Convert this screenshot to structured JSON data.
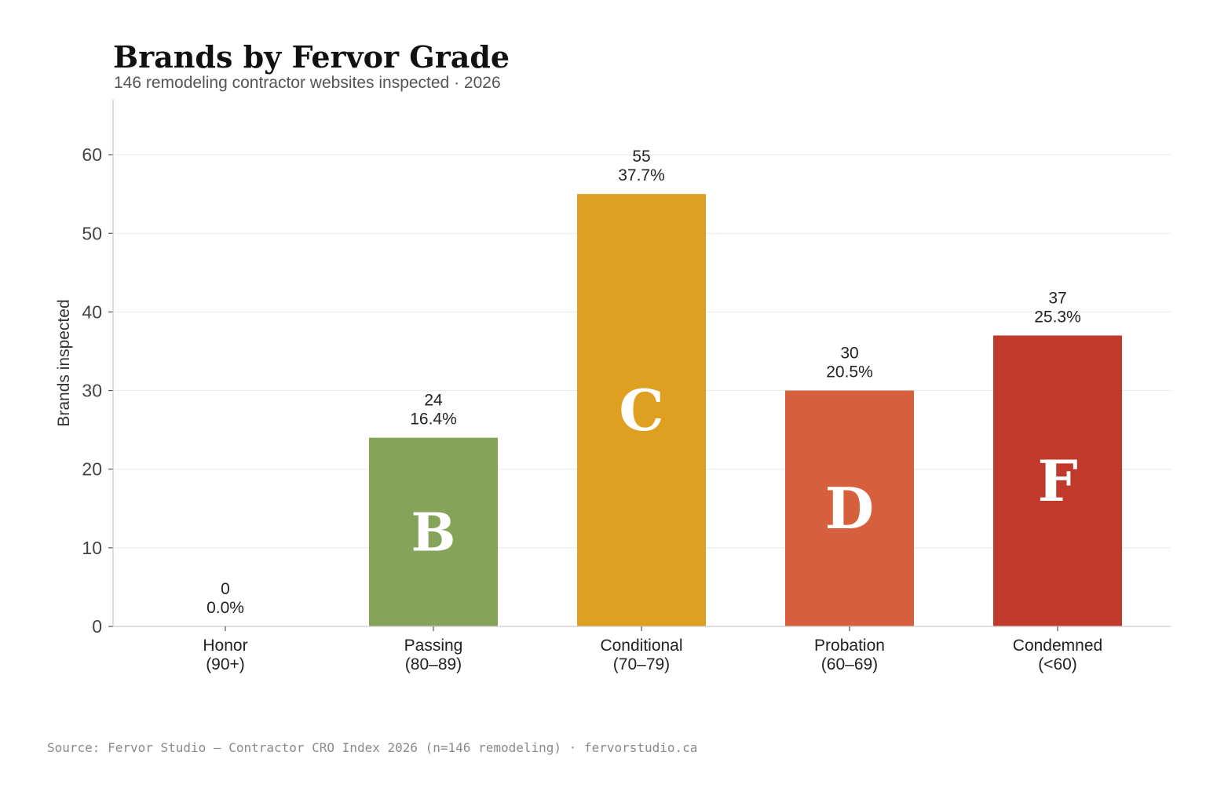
{
  "chart_data": {
    "type": "bar",
    "title": "Brands by Fervor Grade",
    "subtitle": "146 remodeling contractor websites inspected · 2026",
    "xlabel": "",
    "ylabel": "Brands inspected",
    "ylim": [
      0,
      67
    ],
    "yticks": [
      "0",
      "10",
      "20",
      "30",
      "40",
      "50",
      "60"
    ],
    "grid": "horizontal",
    "categories": [
      {
        "name": "Honor",
        "range": "(90+)"
      },
      {
        "name": "Passing",
        "range": "(80–89)"
      },
      {
        "name": "Conditional",
        "range": "(70–79)"
      },
      {
        "name": "Probation",
        "range": "(60–69)"
      },
      {
        "name": "Condemned",
        "range": "(<60)"
      }
    ],
    "values": [
      0,
      24,
      55,
      30,
      37
    ],
    "percent_labels": [
      "0.0%",
      "16.4%",
      "37.7%",
      "20.5%",
      "25.3%"
    ],
    "grades": [
      "",
      "B",
      "C",
      "D",
      "F"
    ],
    "colors": [
      "#2e7d4f",
      "#86a35a",
      "#dfa022",
      "#d6603d",
      "#c0392b"
    ],
    "source": "Source: Fervor Studio — Contractor CRO Index 2026 (n=146 remodeling) · fervorstudio.ca"
  }
}
